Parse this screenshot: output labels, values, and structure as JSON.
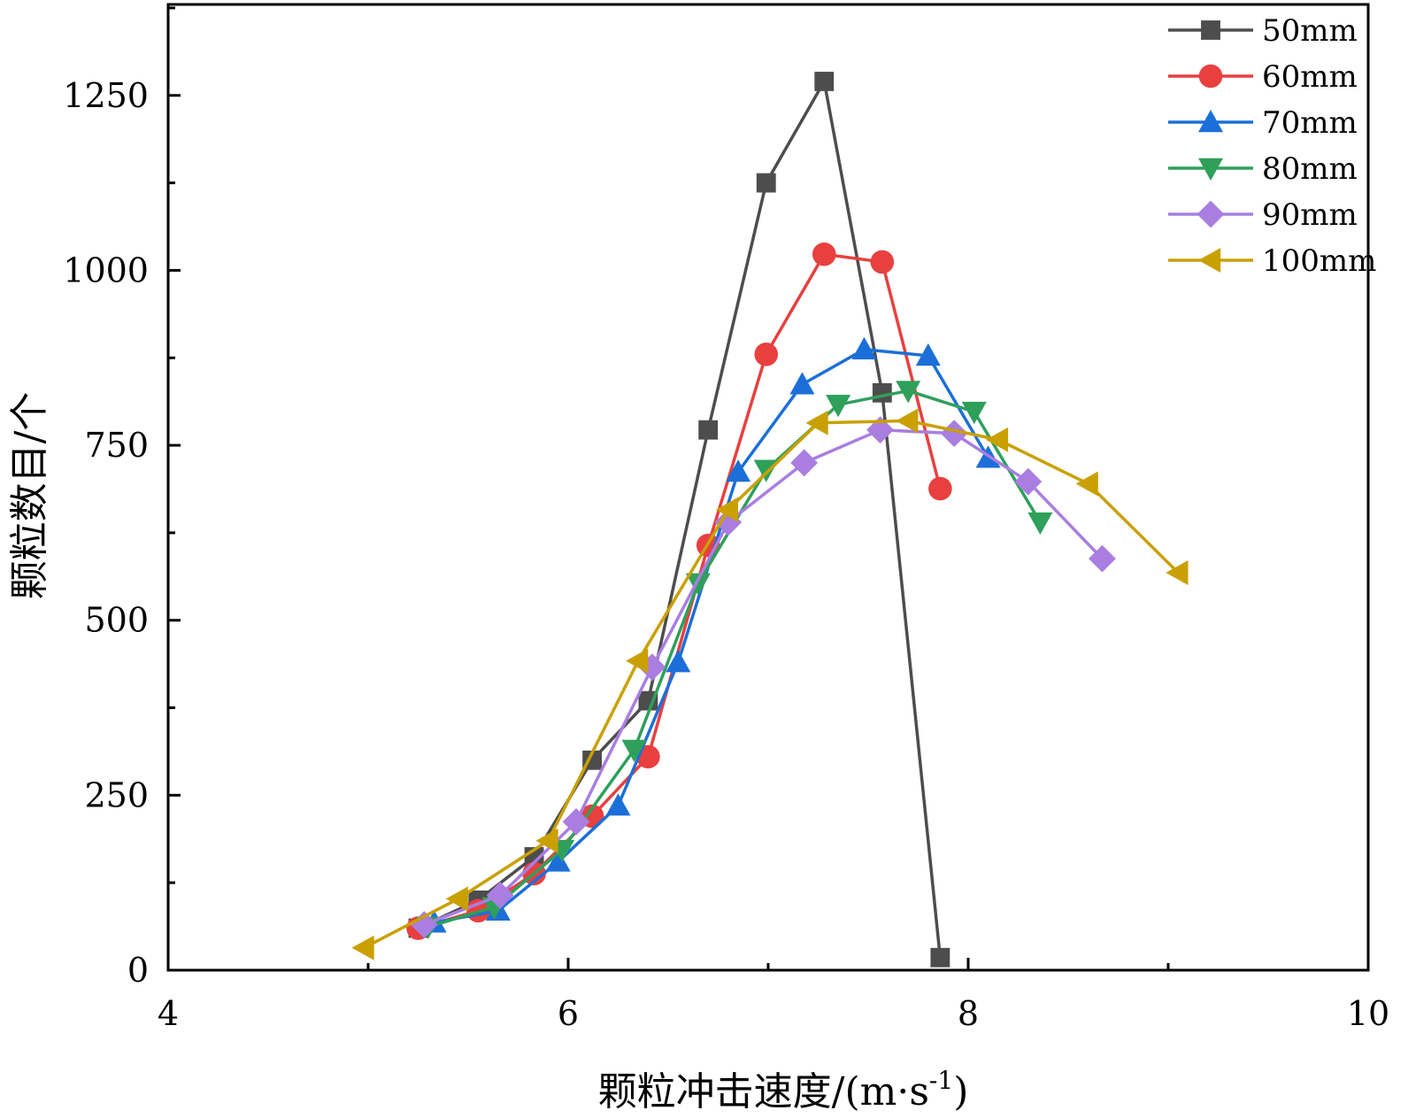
{
  "chart_data": {
    "type": "line",
    "title": "",
    "xlabel": "颗粒冲击速度/(m·s",
    "xlabel_sup": "-1",
    "xlabel_close": ")",
    "ylabel": "颗粒数目/个",
    "xlim": [
      4,
      10
    ],
    "ylim": [
      0,
      1380
    ],
    "xticks": [
      4,
      6,
      8,
      10
    ],
    "xtick_labels": [
      "4",
      "6",
      "8",
      "10"
    ],
    "yticks": [
      0,
      250,
      500,
      750,
      1000,
      1250
    ],
    "ytick_labels": [
      "0",
      "250",
      "500",
      "750",
      "1000",
      "1250"
    ],
    "grid": false,
    "legend_position": "top-right",
    "series": [
      {
        "name": "50mm",
        "color": "#4d4d4d",
        "marker": "square",
        "x": [
          5.25,
          5.55,
          5.83,
          6.12,
          6.4,
          6.7,
          6.99,
          7.28,
          7.57,
          7.86
        ],
        "y": [
          60,
          100,
          162,
          300,
          385,
          772,
          1125,
          1270,
          825,
          18
        ]
      },
      {
        "name": "60mm",
        "color": "#e8403f",
        "marker": "circle",
        "x": [
          5.25,
          5.55,
          5.83,
          6.12,
          6.4,
          6.7,
          6.99,
          7.28,
          7.57,
          7.86
        ],
        "y": [
          60,
          85,
          138,
          220,
          305,
          607,
          880,
          1023,
          1012,
          688
        ]
      },
      {
        "name": "70mm",
        "color": "#1c6fd8",
        "marker": "triangle-up",
        "x": [
          5.33,
          5.65,
          5.95,
          6.25,
          6.55,
          6.85,
          7.17,
          7.48,
          7.8,
          8.1
        ],
        "y": [
          68,
          85,
          155,
          235,
          440,
          712,
          837,
          887,
          878,
          732
        ]
      },
      {
        "name": "80mm",
        "color": "#2ea05a",
        "marker": "triangle-down",
        "x": [
          5.3,
          5.63,
          5.97,
          6.33,
          6.65,
          6.99,
          7.35,
          7.7,
          8.03,
          8.36
        ],
        "y": [
          62,
          90,
          172,
          315,
          553,
          715,
          808,
          828,
          798,
          640
        ]
      },
      {
        "name": "90mm",
        "color": "#a97ee0",
        "marker": "diamond",
        "x": [
          5.28,
          5.66,
          6.04,
          6.42,
          6.8,
          7.18,
          7.56,
          7.93,
          8.3,
          8.67
        ],
        "y": [
          65,
          107,
          212,
          433,
          640,
          725,
          772,
          767,
          698,
          588
        ]
      },
      {
        "name": "100mm",
        "color": "#c9a000",
        "marker": "triangle-left",
        "x": [
          4.98,
          5.45,
          5.9,
          6.35,
          6.8,
          7.25,
          7.7,
          8.15,
          8.6,
          9.05
        ],
        "y": [
          32,
          102,
          185,
          442,
          658,
          782,
          785,
          758,
          695,
          568
        ]
      }
    ]
  }
}
